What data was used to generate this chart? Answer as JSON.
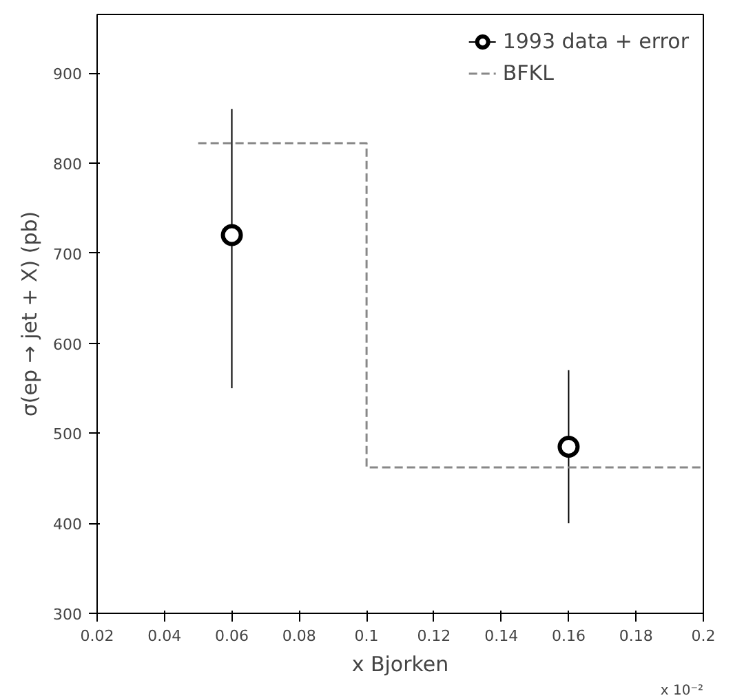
{
  "chart_data": {
    "type": "scatter",
    "xlabel": "x Bjorken",
    "ylabel": "σ(ep → jet + X) (pb)",
    "annotations": [
      "x 10⁻²"
    ],
    "series": [
      {
        "name": "1993 data + error",
        "color": "#000000",
        "x": [
          0.06,
          0.16
        ],
        "values": [
          720,
          485
        ],
        "errors": [
          [
            550,
            860
          ],
          [
            400,
            570
          ]
        ],
        "marker": "circle"
      },
      {
        "name": "BFKL",
        "type": "step",
        "color": "#888888",
        "x": [
          0.05,
          0.1,
          0.2
        ],
        "values": [
          822,
          462,
          462
        ],
        "line_style": "dashed"
      }
    ],
    "xlim": [
      0.02,
      0.2
    ],
    "ylim": [
      300,
      965
    ],
    "xticks": [
      0.02,
      0.04,
      0.06,
      0.08,
      0.1,
      0.12,
      0.14,
      0.16,
      0.18,
      0.2
    ],
    "yticks": [
      300,
      400,
      500,
      600,
      700,
      800,
      900
    ],
    "grid": false,
    "legend": "top right"
  }
}
